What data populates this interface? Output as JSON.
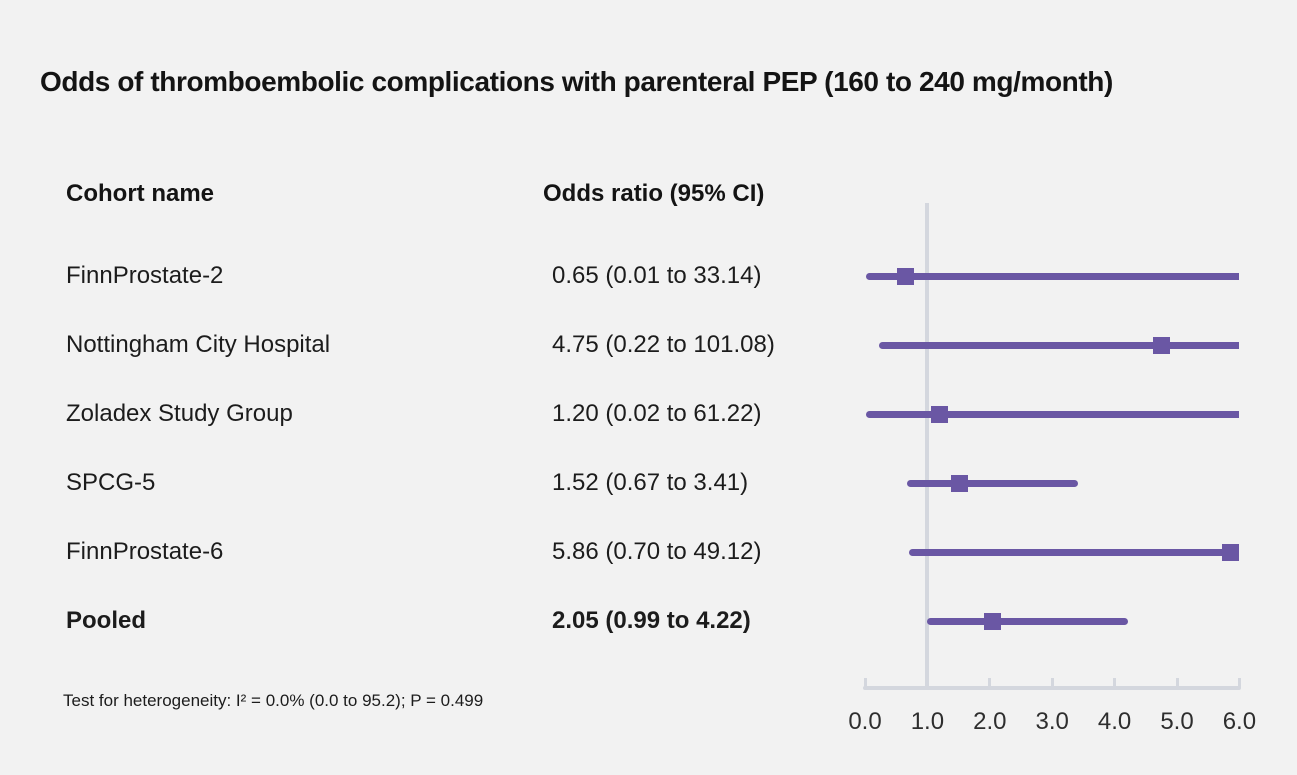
{
  "title": "Odds of thromboembolic complications with parenteral PEP (160 to 240 mg/month)",
  "columns": {
    "cohort": "Cohort name",
    "odds": "Odds ratio (95% CI)"
  },
  "footnote": "Test for heterogeneity: I² = 0.0% (0.0 to 95.2); P = 0.499",
  "colors": {
    "background": "#f2f2f2",
    "accent_purple": "#6a57a4",
    "axis_gray": "#d4d7de",
    "text": "#1c1c1c"
  },
  "chart_data": {
    "type": "forest",
    "title": "Odds of thromboembolic complications with parenteral PEP (160 to 240 mg/month)",
    "xlabel": "Odds ratio",
    "x_range": [
      0,
      6
    ],
    "reference_line": 1.0,
    "tick_labels": [
      "0.0",
      "1.0",
      "2.0",
      "3.0",
      "4.0",
      "5.0",
      "6.0"
    ],
    "tick_values": [
      0,
      1,
      2,
      3,
      4,
      5,
      6
    ],
    "grid": false,
    "rows": [
      {
        "label": "FinnProstate-2",
        "display": "0.65 (0.01 to 33.14)",
        "estimate": 0.65,
        "ci_low": 0.01,
        "ci_high": 33.14,
        "bold": false
      },
      {
        "label": "Nottingham City Hospital",
        "display": "4.75 (0.22 to 101.08)",
        "estimate": 4.75,
        "ci_low": 0.22,
        "ci_high": 101.08,
        "bold": false
      },
      {
        "label": "Zoladex Study Group",
        "display": "1.20 (0.02 to 61.22)",
        "estimate": 1.2,
        "ci_low": 0.02,
        "ci_high": 61.22,
        "bold": false
      },
      {
        "label": "SPCG-5",
        "display": "1.52 (0.67 to 3.41)",
        "estimate": 1.52,
        "ci_low": 0.67,
        "ci_high": 3.41,
        "bold": false
      },
      {
        "label": "FinnProstate-6",
        "display": "5.86 (0.70 to 49.12)",
        "estimate": 5.86,
        "ci_low": 0.7,
        "ci_high": 49.12,
        "bold": false
      },
      {
        "label": "Pooled",
        "display": "2.05 (0.99 to 4.22)",
        "estimate": 2.05,
        "ci_low": 0.99,
        "ci_high": 4.22,
        "bold": true
      }
    ]
  }
}
